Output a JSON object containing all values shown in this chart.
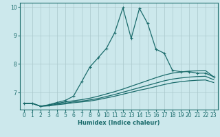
{
  "xlabel": "Humidex (Indice chaleur)",
  "xlim": [
    -0.5,
    23.5
  ],
  "ylim": [
    6.4,
    10.15
  ],
  "yticks": [
    7,
    8,
    9,
    10
  ],
  "xticks": [
    0,
    1,
    2,
    3,
    4,
    5,
    6,
    7,
    8,
    9,
    10,
    11,
    12,
    13,
    14,
    15,
    16,
    17,
    18,
    19,
    20,
    21,
    22,
    23
  ],
  "background_color": "#cce8ec",
  "grid_color": "#aac8cc",
  "line_color": "#1a6b6b",
  "series": {
    "main": {
      "x": [
        0,
        1,
        2,
        3,
        4,
        5,
        6,
        7,
        8,
        9,
        10,
        11,
        12,
        13,
        14,
        15,
        16,
        17,
        18,
        19,
        20,
        21,
        22,
        23
      ],
      "y": [
        6.62,
        6.62,
        6.52,
        6.57,
        6.65,
        6.72,
        6.87,
        7.38,
        7.9,
        8.22,
        8.55,
        9.1,
        9.97,
        8.9,
        9.95,
        9.42,
        8.52,
        8.38,
        7.78,
        7.73,
        7.73,
        7.68,
        7.68,
        7.55
      ]
    },
    "lower1": {
      "x": [
        0,
        1,
        2,
        3,
        4,
        5,
        6,
        7,
        8,
        9,
        10,
        11,
        12,
        13,
        14,
        15,
        16,
        17,
        18,
        19,
        20,
        21,
        22,
        23
      ],
      "y": [
        6.62,
        6.62,
        6.52,
        6.56,
        6.62,
        6.67,
        6.71,
        6.75,
        6.8,
        6.87,
        6.95,
        7.03,
        7.12,
        7.22,
        7.32,
        7.42,
        7.52,
        7.61,
        7.68,
        7.72,
        7.75,
        7.76,
        7.77,
        7.55
      ]
    },
    "lower2": {
      "x": [
        0,
        1,
        2,
        3,
        4,
        5,
        6,
        7,
        8,
        9,
        10,
        11,
        12,
        13,
        14,
        15,
        16,
        17,
        18,
        19,
        20,
        21,
        22,
        23
      ],
      "y": [
        6.62,
        6.62,
        6.52,
        6.54,
        6.59,
        6.63,
        6.67,
        6.7,
        6.74,
        6.79,
        6.86,
        6.93,
        7.01,
        7.09,
        7.17,
        7.25,
        7.33,
        7.41,
        7.47,
        7.51,
        7.54,
        7.56,
        7.57,
        7.45
      ]
    },
    "lower3": {
      "x": [
        0,
        1,
        2,
        3,
        4,
        5,
        6,
        7,
        8,
        9,
        10,
        11,
        12,
        13,
        14,
        15,
        16,
        17,
        18,
        19,
        20,
        21,
        22,
        23
      ],
      "y": [
        6.62,
        6.62,
        6.52,
        6.53,
        6.57,
        6.6,
        6.64,
        6.67,
        6.7,
        6.75,
        6.81,
        6.87,
        6.94,
        7.01,
        7.08,
        7.14,
        7.21,
        7.28,
        7.34,
        7.38,
        7.41,
        7.43,
        7.44,
        7.35
      ]
    }
  }
}
